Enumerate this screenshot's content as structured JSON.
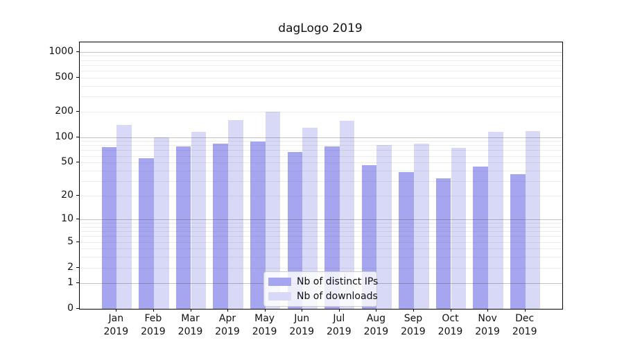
{
  "title": "dagLogo 2019",
  "colors": {
    "bar_distinct_ips": "#a5a5f0",
    "bar_downloads": "#d8d8f7",
    "axis": "#000000",
    "grid_major": "rgba(70,70,70,0.33)",
    "grid_minor": "rgba(70,70,70,0.10)",
    "legend_border": "#cccccc"
  },
  "chart_data": {
    "type": "bar",
    "title": "dagLogo 2019",
    "xlabel": "",
    "ylabel": "",
    "yscale": "log1p",
    "ylim": [
      0,
      1300
    ],
    "grid": "both",
    "legend_position": "lower center",
    "year": "2019",
    "categories": [
      "Jan",
      "Feb",
      "Mar",
      "Apr",
      "May",
      "Jun",
      "Jul",
      "Aug",
      "Sep",
      "Oct",
      "Nov",
      "Dec"
    ],
    "yticks": [
      1000,
      500,
      200,
      100,
      50,
      20,
      10,
      5,
      2,
      1,
      0
    ],
    "series": [
      {
        "name": "Nb of distinct IPs",
        "color": "#a5a5f0",
        "values": [
          76,
          56,
          78,
          84,
          88,
          66,
          78,
          46,
          38,
          32,
          45,
          36
        ]
      },
      {
        "name": "Nb of downloads",
        "color": "#d8d8f7",
        "values": [
          140,
          100,
          116,
          160,
          200,
          130,
          156,
          80,
          84,
          74,
          115,
          118
        ]
      }
    ]
  }
}
